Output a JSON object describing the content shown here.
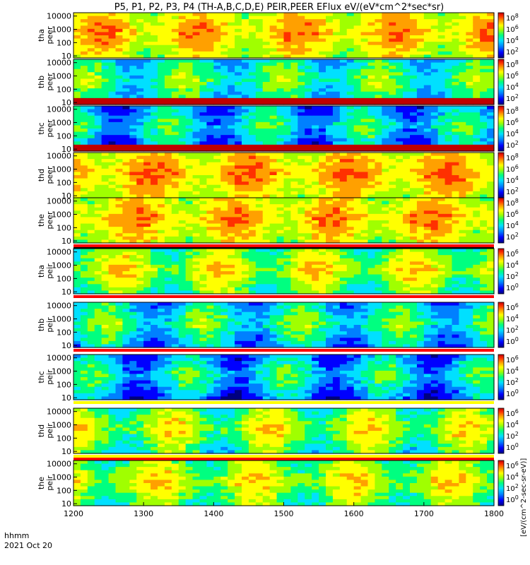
{
  "title": "P5, P1, P2, P3, P4 (TH-A,B,C,D,E) PEIR,PEER EFlux eV/(eV*cm^2*sec*sr)",
  "footer": {
    "time_label": "hhmm",
    "date_label": "2021 Oct 20"
  },
  "colorbar_units": "[eV/(cm^2-sec-sr-eV)]",
  "colors": {
    "scale": [
      "#000080",
      "#0000ff",
      "#0080ff",
      "#00e0ff",
      "#00ff80",
      "#a0ff00",
      "#ffff00",
      "#ffa000",
      "#ff3000",
      "#c00000"
    ],
    "bar_red": "#ff0000",
    "bar_yellow": "#ffff00",
    "bar_black": "#000000"
  },
  "chart_data": {
    "type": "heatmap",
    "x_ticks": [
      "1200",
      "1300",
      "1400",
      "1500",
      "1600",
      "1700",
      "1800"
    ],
    "xlim": [
      "1200",
      "1800"
    ],
    "y_scale": "log",
    "panels": [
      {
        "id": "tha-peer",
        "ylabel_top": "tha",
        "ylabel_bottom": "peer",
        "y_ticks": [
          "10000",
          "1000",
          "100",
          "10"
        ],
        "c_ticks": [
          "10^8",
          "10^6",
          "10^4",
          "10^2"
        ],
        "level_base": 0.72,
        "spread": 0.24,
        "low_floor": false
      },
      {
        "id": "thb-peer",
        "ylabel_top": "thb",
        "ylabel_bottom": "peer",
        "y_ticks": [
          "10000",
          "1000",
          "100",
          "10"
        ],
        "c_ticks": [
          "10^8",
          "10^6",
          "10^4",
          "10^2"
        ],
        "level_base": 0.48,
        "spread": 0.3,
        "low_floor": true
      },
      {
        "id": "thc-peer",
        "ylabel_top": "thc",
        "ylabel_bottom": "peer",
        "y_ticks": [
          "10000",
          "1000",
          "100",
          "10"
        ],
        "c_ticks": [
          "10^8",
          "10^6",
          "10^4",
          "10^2"
        ],
        "level_base": 0.4,
        "spread": 0.35,
        "low_floor": true
      },
      {
        "id": "thd-peer",
        "ylabel_top": "thd",
        "ylabel_bottom": "peer",
        "y_ticks": [
          "10000",
          "1000",
          "100",
          "10"
        ],
        "c_ticks": [
          "10^8",
          "10^6",
          "10^4",
          "10^2"
        ],
        "level_base": 0.74,
        "spread": 0.24,
        "low_floor": false
      },
      {
        "id": "the-peer",
        "ylabel_top": "the",
        "ylabel_bottom": "peer",
        "y_ticks": [
          "10000",
          "1000",
          "100",
          "10"
        ],
        "c_ticks": [
          "10^8",
          "10^6",
          "10^4",
          "10^2"
        ],
        "level_base": 0.72,
        "spread": 0.24,
        "low_floor": false
      },
      {
        "id": "tha-peir",
        "ylabel_top": "tha",
        "ylabel_bottom": "peir",
        "y_ticks": [
          "10000",
          "1000",
          "100",
          "10"
        ],
        "c_ticks": [
          "10^6",
          "10^4",
          "10^2",
          "10^0"
        ],
        "level_base": 0.62,
        "spread": 0.3,
        "low_floor": false
      },
      {
        "id": "thb-peir",
        "ylabel_top": "thb",
        "ylabel_bottom": "peir",
        "y_ticks": [
          "10000",
          "1000",
          "100",
          "10"
        ],
        "c_ticks": [
          "10^6",
          "10^4",
          "10^2",
          "10^0"
        ],
        "level_base": 0.46,
        "spread": 0.34,
        "low_floor": false
      },
      {
        "id": "thc-peir",
        "ylabel_top": "thc",
        "ylabel_bottom": "peir",
        "y_ticks": [
          "10000",
          "1000",
          "100",
          "10"
        ],
        "c_ticks": [
          "10^6",
          "10^4",
          "10^2",
          "10^0"
        ],
        "level_base": 0.4,
        "spread": 0.36,
        "low_floor": false
      },
      {
        "id": "thd-peir",
        "ylabel_top": "thd",
        "ylabel_bottom": "peir",
        "y_ticks": [
          "10000",
          "1000",
          "100",
          "10"
        ],
        "c_ticks": [
          "10^6",
          "10^4",
          "10^2",
          "10^0"
        ],
        "level_base": 0.6,
        "spread": 0.32,
        "low_floor": false
      },
      {
        "id": "the-peir",
        "ylabel_top": "the",
        "ylabel_bottom": "peir",
        "y_ticks": [
          "10000",
          "1000",
          "100",
          "10"
        ],
        "c_ticks": [
          "10^6",
          "10^4",
          "10^2",
          "10^0"
        ],
        "level_base": 0.62,
        "spread": 0.3,
        "low_floor": false
      }
    ]
  }
}
